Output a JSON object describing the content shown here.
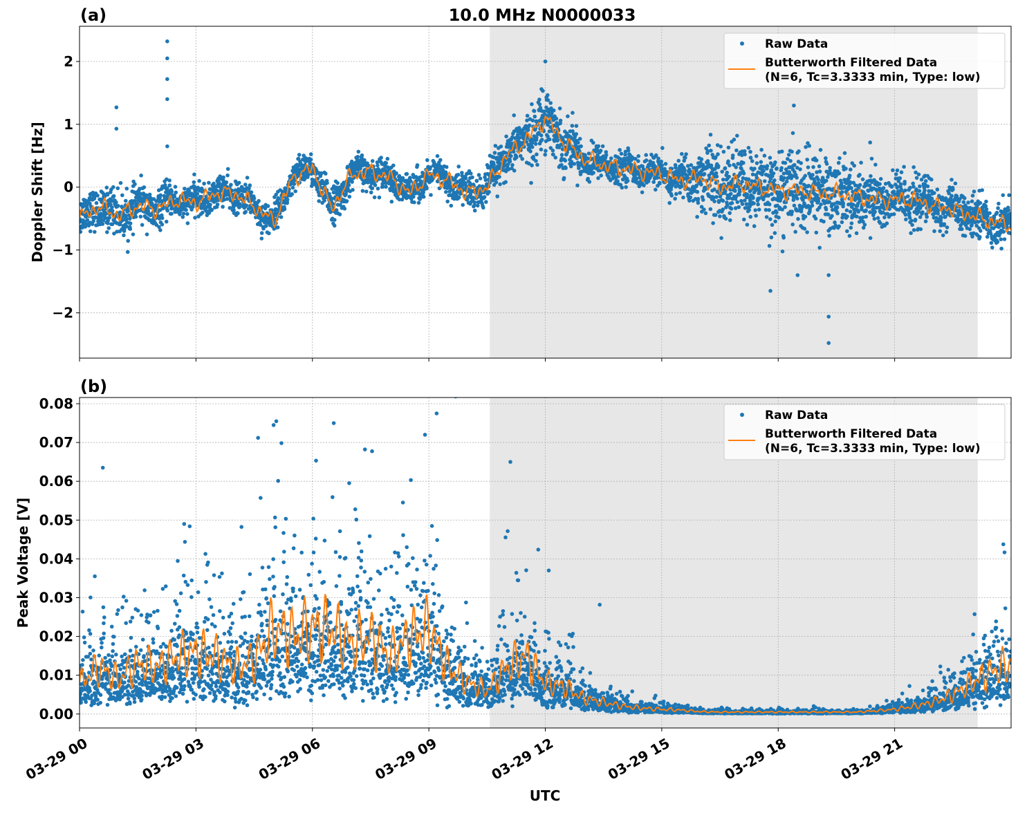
{
  "title": "10.0 MHz N0000033",
  "chart_data": [
    {
      "panel_label": "(a)",
      "type": "scatter",
      "ylabel": "Doppler Shift [Hz]",
      "xlabel": "",
      "xlim_hours": [
        0,
        24
      ],
      "ylim": [
        -2.72,
        2.56
      ],
      "yticks": [
        -2,
        -1,
        0,
        1,
        2
      ],
      "ytick_labels": [
        "−2",
        "−1",
        "0",
        "1",
        "2"
      ],
      "grid": true,
      "legend_position": "top-right",
      "legend": [
        "Raw Data",
        "Butterworth Filtered Data\n(N=6, Tc=3.3333 min, Type: low)"
      ],
      "legend_lines": [
        "Raw Data",
        "Butterworth Filtered Data",
        "(N=6, Tc=3.3333 min, Type: low)"
      ],
      "shaded_region_hours": [
        10.57,
        23.14
      ],
      "filtered_x_hours": [
        0,
        0.5,
        1,
        1.5,
        2,
        2.5,
        3,
        3.5,
        4,
        4.5,
        5,
        5.5,
        6,
        6.5,
        7,
        7.5,
        8,
        8.5,
        9,
        9.5,
        10,
        10.5,
        11,
        11.5,
        12,
        12.5,
        13,
        13.5,
        14,
        14.5,
        15,
        15.5,
        16,
        16.5,
        17,
        17.5,
        18,
        18.5,
        19,
        19.5,
        20,
        20.5,
        21,
        21.5,
        22,
        22.5,
        23,
        23.5,
        24
      ],
      "filtered_values": [
        -0.5,
        -0.3,
        -0.45,
        -0.3,
        -0.35,
        -0.2,
        -0.25,
        -0.1,
        -0.1,
        -0.3,
        -0.55,
        0.15,
        0.3,
        -0.35,
        0.2,
        0.25,
        0.15,
        -0.1,
        0.2,
        0.1,
        -0.1,
        0.0,
        0.5,
        0.75,
        1.1,
        0.7,
        0.45,
        0.35,
        0.3,
        0.25,
        0.2,
        0.1,
        0.15,
        0.0,
        0.05,
        0.0,
        -0.05,
        -0.05,
        -0.1,
        -0.1,
        -0.15,
        -0.2,
        -0.2,
        -0.2,
        -0.3,
        -0.35,
        -0.45,
        -0.55,
        -0.6
      ],
      "raw_spread": [
        0.15,
        0.15,
        0.18,
        0.15,
        0.15,
        0.12,
        0.12,
        0.12,
        0.12,
        0.12,
        0.12,
        0.12,
        0.12,
        0.15,
        0.12,
        0.12,
        0.12,
        0.12,
        0.12,
        0.12,
        0.15,
        0.15,
        0.15,
        0.2,
        0.25,
        0.2,
        0.15,
        0.12,
        0.12,
        0.12,
        0.12,
        0.15,
        0.25,
        0.3,
        0.3,
        0.3,
        0.3,
        0.35,
        0.3,
        0.3,
        0.25,
        0.25,
        0.2,
        0.2,
        0.18,
        0.15,
        0.15,
        0.15,
        0.15
      ],
      "raw_outliers": [
        {
          "x_hours": 0.95,
          "y": 1.27
        },
        {
          "x_hours": 0.95,
          "y": 0.93
        },
        {
          "x_hours": 2.26,
          "y": 2.32
        },
        {
          "x_hours": 2.26,
          "y": 2.05
        },
        {
          "x_hours": 2.26,
          "y": 1.72
        },
        {
          "x_hours": 2.26,
          "y": 1.4
        },
        {
          "x_hours": 2.26,
          "y": 0.65
        },
        {
          "x_hours": 12.0,
          "y": 2.0
        },
        {
          "x_hours": 17.8,
          "y": -1.65
        },
        {
          "x_hours": 19.3,
          "y": -2.06
        },
        {
          "x_hours": 19.3,
          "y": -2.48
        },
        {
          "x_hours": 19.3,
          "y": -1.4
        },
        {
          "x_hours": 18.5,
          "y": -1.4
        }
      ]
    },
    {
      "panel_label": "(b)",
      "type": "scatter",
      "ylabel": "Peak Voltage [V]",
      "xlabel": "UTC",
      "xlim_hours": [
        0,
        24
      ],
      "ylim": [
        -0.0036,
        0.0816
      ],
      "yticks": [
        0.0,
        0.01,
        0.02,
        0.03,
        0.04,
        0.05,
        0.06,
        0.07,
        0.08
      ],
      "ytick_labels": [
        "0.00",
        "0.01",
        "0.02",
        "0.03",
        "0.04",
        "0.05",
        "0.06",
        "0.07",
        "0.08"
      ],
      "grid": true,
      "legend_position": "top-right",
      "legend": [
        "Raw Data",
        "Butterworth Filtered Data\n(N=6, Tc=3.3333 min, Type: low)"
      ],
      "legend_lines": [
        "Raw Data",
        "Butterworth Filtered Data",
        "(N=6, Tc=3.3333 min, Type: low)"
      ],
      "shaded_region_hours": [
        10.57,
        23.14
      ],
      "filtered_x_hours": [
        0,
        0.5,
        1,
        1.5,
        2,
        2.5,
        3,
        3.5,
        4,
        4.5,
        5,
        5.5,
        6,
        6.5,
        7,
        7.5,
        8,
        8.5,
        9,
        9.5,
        10,
        10.5,
        11,
        11.5,
        12,
        12.5,
        13,
        13.5,
        14,
        14.5,
        15,
        15.5,
        16,
        16.5,
        17,
        17.5,
        18,
        18.5,
        19,
        19.5,
        20,
        20.5,
        21,
        21.5,
        22,
        22.5,
        23,
        23.5,
        24
      ],
      "filtered_values": [
        0.008,
        0.012,
        0.009,
        0.013,
        0.012,
        0.015,
        0.016,
        0.015,
        0.012,
        0.014,
        0.022,
        0.02,
        0.022,
        0.022,
        0.018,
        0.02,
        0.015,
        0.02,
        0.022,
        0.012,
        0.008,
        0.006,
        0.012,
        0.015,
        0.008,
        0.007,
        0.004,
        0.003,
        0.002,
        0.0015,
        0.0012,
        0.001,
        0.0006,
        0.0005,
        0.0005,
        0.0005,
        0.0005,
        0.0005,
        0.0005,
        0.0005,
        0.0005,
        0.0008,
        0.0012,
        0.002,
        0.003,
        0.005,
        0.008,
        0.011,
        0.013
      ],
      "raw_outliers": [
        {
          "x_hours": 0.6,
          "y": 0.0635
        },
        {
          "x_hours": 5.0,
          "y": 0.0745
        },
        {
          "x_hours": 6.55,
          "y": 0.075
        },
        {
          "x_hours": 9.2,
          "y": 0.0775
        },
        {
          "x_hours": 11.1,
          "y": 0.065
        },
        {
          "x_hours": 4.6,
          "y": 0.0712
        },
        {
          "x_hours": 8.9,
          "y": 0.072
        }
      ]
    }
  ],
  "x_axis": {
    "label": "UTC",
    "tick_hours": [
      0,
      3,
      6,
      9,
      12,
      15,
      18,
      21
    ],
    "tick_labels": [
      "03-29 00",
      "03-29 03",
      "03-29 06",
      "03-29 09",
      "03-29 12",
      "03-29 15",
      "03-29 18",
      "03-29 21"
    ]
  },
  "colors": {
    "raw": "#1f77b4",
    "filtered": "#ff7f0e",
    "shade": "#e7e7e7",
    "grid": "#b0b0b0"
  }
}
